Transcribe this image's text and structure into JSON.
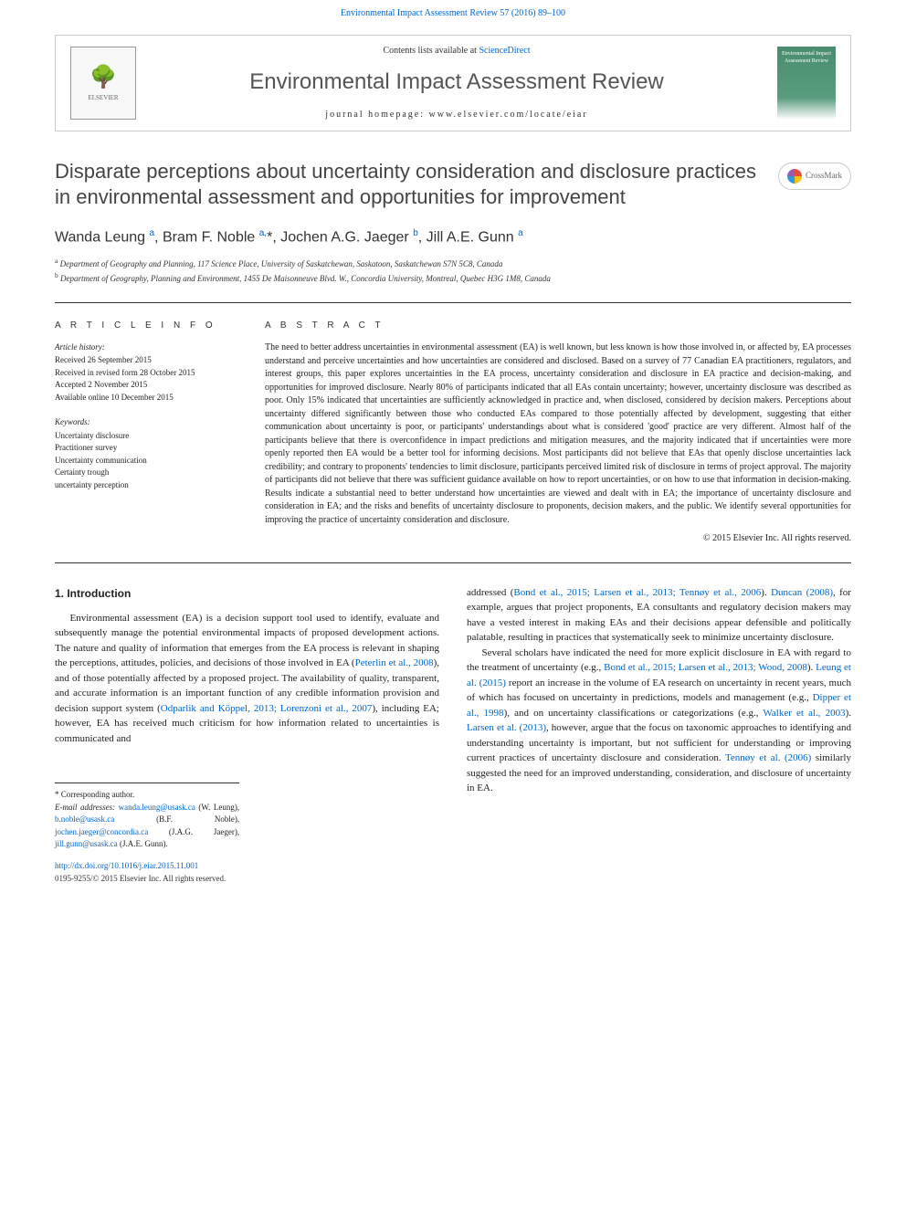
{
  "top_link": {
    "journal": "Environmental Impact Assessment Review",
    "citation": "57 (2016) 89–100"
  },
  "header": {
    "contents_prefix": "Contents lists available at",
    "contents_link": "ScienceDirect",
    "journal_name": "Environmental Impact Assessment Review",
    "homepage_label": "journal homepage:",
    "homepage_url": "www.elsevier.com/locate/eiar",
    "publisher_logo_text": "ELSEVIER",
    "cover_text": "Environmental Impact Assessment Review"
  },
  "crossmark_label": "CrossMark",
  "title": "Disparate perceptions about uncertainty consideration and disclosure practices in environmental assessment and opportunities for improvement",
  "authors_html": "Wanda Leung <sup>a</sup>, Bram F. Noble <sup>a,</sup>*, Jochen A.G. Jaeger <sup>b</sup>, Jill A.E. Gunn <sup>a</sup>",
  "affiliations": {
    "a": "Department of Geography and Planning, 117 Science Place, University of Saskatchewan, Saskatoon, Saskatchewan S7N 5C8, Canada",
    "b": "Department of Geography, Planning and Environment, 1455 De Maisonneuve Blvd. W., Concordia University, Montreal, Quebec H3G 1M8, Canada"
  },
  "article_info": {
    "heading": "A R T I C L E   I N F O",
    "history_label": "Article history:",
    "history": [
      "Received 26 September 2015",
      "Received in revised form 28 October 2015",
      "Accepted 2 November 2015",
      "Available online 10 December 2015"
    ],
    "keywords_label": "Keywords:",
    "keywords": [
      "Uncertainty disclosure",
      "Practitioner survey",
      "Uncertainty communication",
      "Certainty trough",
      "uncertainty perception"
    ]
  },
  "abstract": {
    "heading": "A B S T R A C T",
    "body": "The need to better address uncertainties in environmental assessment (EA) is well known, but less known is how those involved in, or affected by, EA processes understand and perceive uncertainties and how uncertainties are considered and disclosed. Based on a survey of 77 Canadian EA practitioners, regulators, and interest groups, this paper explores uncertainties in the EA process, uncertainty consideration and disclosure in EA practice and decision-making, and opportunities for improved disclosure. Nearly 80% of participants indicated that all EAs contain uncertainty; however, uncertainty disclosure was described as poor. Only 15% indicated that uncertainties are sufficiently acknowledged in practice and, when disclosed, considered by decision makers. Perceptions about uncertainty differed significantly between those who conducted EAs compared to those potentially affected by development, suggesting that either communication about uncertainty is poor, or participants' understandings about what is considered 'good' practice are very different. Almost half of the participants believe that there is overconfidence in impact predictions and mitigation measures, and the majority indicated that if uncertainties were more openly reported then EA would be a better tool for informing decisions. Most participants did not believe that EAs that openly disclose uncertainties lack credibility; and contrary to proponents' tendencies to limit disclosure, participants perceived limited risk of disclosure in terms of project approval. The majority of participants did not believe that there was sufficient guidance available on how to report uncertainties, or on how to use that information in decision-making. Results indicate a substantial need to better understand how uncertainties are viewed and dealt with in EA; the importance of uncertainty disclosure and consideration in EA; and the risks and benefits of uncertainty disclosure to proponents, decision makers, and the public. We identify several opportunities for improving the practice of uncertainty consideration and disclosure.",
    "copyright": "© 2015 Elsevier Inc. All rights reserved."
  },
  "intro": {
    "heading": "1. Introduction",
    "col1_p1": "Environmental assessment (EA) is a decision support tool used to identify, evaluate and subsequently manage the potential environmental impacts of proposed development actions. The nature and quality of information that emerges from the EA process is relevant in shaping the perceptions, attitudes, policies, and decisions of those involved in EA (",
    "col1_cite1": "Peterlin et al., 2008",
    "col1_p1b": "), and of those potentially affected by a proposed project. The availability of quality, transparent, and accurate information is an important function of any credible information provision and decision support system (",
    "col1_cite2": "Odparlik and Köppel, 2013; Lorenzoni et al., 2007",
    "col1_p1c": "), including EA; however, EA has received much criticism for how information related to uncertainties is communicated and",
    "col2_p1": "addressed (",
    "col2_cite1": "Bond et al., 2015; Larsen et al., 2013; Tennøy et al., 2006",
    "col2_p1b": "). ",
    "col2_cite2": "Duncan (2008)",
    "col2_p1c": ", for example, argues that project proponents, EA consultants and regulatory decision makers may have a vested interest in making EAs and their decisions appear defensible and politically palatable, resulting in practices that systematically seek to minimize uncertainty disclosure.",
    "col2_p2": "Several scholars have indicated the need for more explicit disclosure in EA with regard to the treatment of uncertainty (e.g., ",
    "col2_cite3": "Bond et al., 2015; Larsen et al., 2013; Wood, 2008",
    "col2_p2b": "). ",
    "col2_cite4": "Leung et al. (2015)",
    "col2_p2c": " report an increase in the volume of EA research on uncertainty in recent years, much of which has focused on uncertainty in predictions, models and management (e.g., ",
    "col2_cite5": "Dipper et al., 1998",
    "col2_p2d": "), and on uncertainty classifications or categorizations (e.g., ",
    "col2_cite6": "Walker et al., 2003",
    "col2_p2e": "). ",
    "col2_cite7": "Larsen et al. (2013)",
    "col2_p2f": ", however, argue that the focus on taxonomic approaches to identifying and understanding uncertainty is important, but not sufficient for understanding or improving current practices of uncertainty disclosure and consideration. ",
    "col2_cite8": "Tennøy et al. (2006)",
    "col2_p2g": " similarly suggested the need for an improved understanding, consideration, and disclosure of uncertainty in EA."
  },
  "footnotes": {
    "corr": "* Corresponding author.",
    "email_label": "E-mail addresses:",
    "emails": [
      {
        "addr": "wanda.leung@usask.ca",
        "who": "(W. Leung)"
      },
      {
        "addr": "b.noble@usask.ca",
        "who": "(B.F. Noble)"
      },
      {
        "addr": "jochen.jaeger@concordia.ca",
        "who": "(J.A.G. Jaeger)"
      },
      {
        "addr": "jill.gunn@usask.ca",
        "who": "(J.A.E. Gunn)"
      }
    ]
  },
  "bottom": {
    "doi": "http://dx.doi.org/10.1016/j.eiar.2015.11.001",
    "issn": "0195-9255/© 2015 Elsevier Inc. All rights reserved."
  },
  "colors": {
    "link": "#0066cc",
    "text": "#222222",
    "rule": "#333333",
    "cover_green": "#4a8c6e"
  }
}
